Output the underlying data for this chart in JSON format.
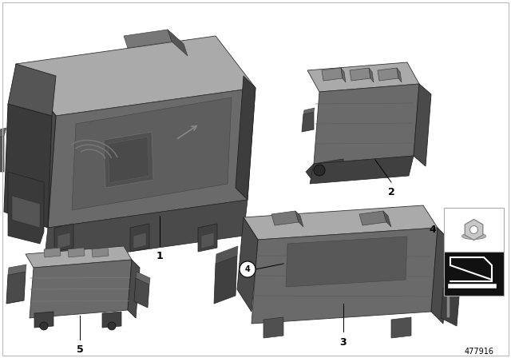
{
  "background_color": "#ffffff",
  "border_color": "#bbbbbb",
  "fig_width": 6.4,
  "fig_height": 4.48,
  "dpi": 100,
  "part_number": "477916",
  "bg_gray": "#f0f0f0",
  "c_dark": "#4a4a4a",
  "c_mid": "#6a6a6a",
  "c_light": "#8a8a8a",
  "c_lighter": "#aaaaaa",
  "c_lightest": "#cccccc",
  "c_white": "#ffffff",
  "c_black": "#111111"
}
